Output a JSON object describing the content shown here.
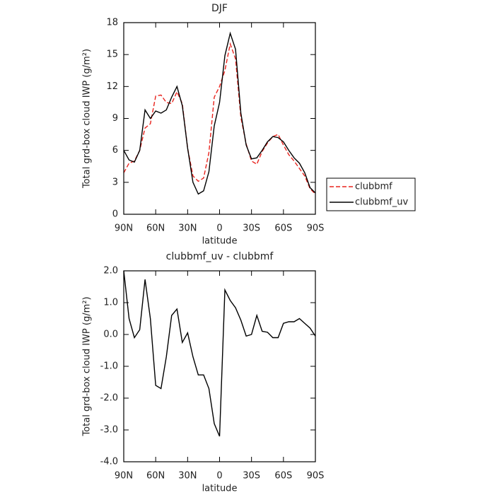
{
  "chart_data": [
    {
      "type": "line",
      "title": "DJF",
      "x_label": "latitude",
      "y_label": "Total grd-box cloud IWP (g/m²)",
      "x": [
        90,
        85,
        80,
        75,
        70,
        65,
        60,
        55,
        50,
        45,
        40,
        35,
        30,
        25,
        20,
        15,
        10,
        5,
        0,
        -5,
        -10,
        -15,
        -20,
        -25,
        -30,
        -35,
        -40,
        -45,
        -50,
        -55,
        -60,
        -65,
        -70,
        -75,
        -80,
        -85,
        -90
      ],
      "series": [
        {
          "name": "clubbmf",
          "color": "#e8231d",
          "line_style": "dashed",
          "values": [
            3.9,
            4.8,
            5.0,
            6.0,
            8.1,
            8.5,
            11.1,
            11.2,
            10.5,
            10.4,
            11.5,
            10.4,
            6.2,
            3.6,
            3.1,
            3.4,
            5.8,
            11.0,
            12.0,
            13.5,
            16.0,
            14.6,
            9.1,
            6.6,
            5.0,
            4.7,
            5.9,
            6.7,
            7.3,
            7.5,
            6.5,
            5.6,
            5.0,
            4.3,
            3.6,
            2.4,
            1.9
          ]
        },
        {
          "name": "clubbmf_uv",
          "color": "#000000",
          "line_style": "solid",
          "values": [
            6.0,
            5.1,
            4.9,
            6.0,
            9.8,
            9.0,
            9.7,
            9.5,
            9.8,
            11.0,
            12.0,
            10.2,
            6.2,
            3.0,
            1.9,
            2.2,
            4.0,
            8.3,
            10.5,
            14.9,
            17.0,
            15.5,
            9.5,
            6.5,
            5.2,
            5.3,
            6.0,
            6.8,
            7.3,
            7.2,
            6.8,
            6.0,
            5.3,
            4.8,
            3.9,
            2.5,
            2.0
          ]
        }
      ],
      "xlim": [
        90,
        -90
      ],
      "xticks": [
        {
          "value": 90,
          "label": "90N"
        },
        {
          "value": 60,
          "label": "60N"
        },
        {
          "value": 30,
          "label": "30N"
        },
        0,
        {
          "value": -30,
          "label": "30S"
        },
        {
          "value": -60,
          "label": "60S"
        },
        {
          "value": -90,
          "label": "90S"
        }
      ],
      "ylim": [
        0,
        18
      ],
      "yticks": [
        0,
        3,
        6,
        9,
        12,
        15,
        18
      ],
      "legend": "right"
    },
    {
      "type": "line",
      "title": "clubbmf_uv - clubbmf",
      "x_label": "latitude",
      "y_label": "Total grd-box cloud IWP (g/m²)",
      "x": [
        90,
        85,
        80,
        75,
        70,
        65,
        60,
        55,
        50,
        45,
        40,
        35,
        30,
        25,
        20,
        15,
        10,
        5,
        0,
        -5,
        -10,
        -15,
        -20,
        -25,
        -30,
        -35,
        -40,
        -45,
        -50,
        -55,
        -60,
        -65,
        -70,
        -75,
        -80,
        -85,
        -90
      ],
      "series": [
        {
          "color": "#000000",
          "line_style": "solid",
          "values": [
            2.0,
            0.5,
            -0.1,
            0.15,
            1.73,
            0.5,
            -1.6,
            -1.7,
            -0.7,
            0.6,
            0.8,
            -0.25,
            0.05,
            -0.7,
            -1.27,
            -1.27,
            -1.7,
            -2.8,
            -3.2,
            1.4,
            1.07,
            0.84,
            0.45,
            -0.05,
            0.0,
            0.6,
            0.1,
            0.07,
            -0.1,
            -0.1,
            0.35,
            0.4,
            0.4,
            0.5,
            0.35,
            0.2,
            -0.05
          ]
        }
      ],
      "xlim": [
        90,
        -90
      ],
      "xticks": [
        {
          "value": 90,
          "label": "90N"
        },
        {
          "value": 60,
          "label": "60N"
        },
        {
          "value": 30,
          "label": "30N"
        },
        0,
        {
          "value": -30,
          "label": "30S"
        },
        {
          "value": -60,
          "label": "60S"
        },
        {
          "value": -90,
          "label": "90S"
        }
      ],
      "ylim": [
        -4,
        2
      ],
      "yticks": [
        {
          "value": -4,
          "label": "-4.0"
        },
        {
          "value": -3,
          "label": "-3.0"
        },
        {
          "value": -2,
          "label": "-2.0"
        },
        {
          "value": -1,
          "label": "-1.0"
        },
        {
          "value": 0,
          "label": "0.0"
        },
        {
          "value": 1,
          "label": "1.0"
        },
        {
          "value": 2,
          "label": "2.0"
        }
      ]
    }
  ]
}
